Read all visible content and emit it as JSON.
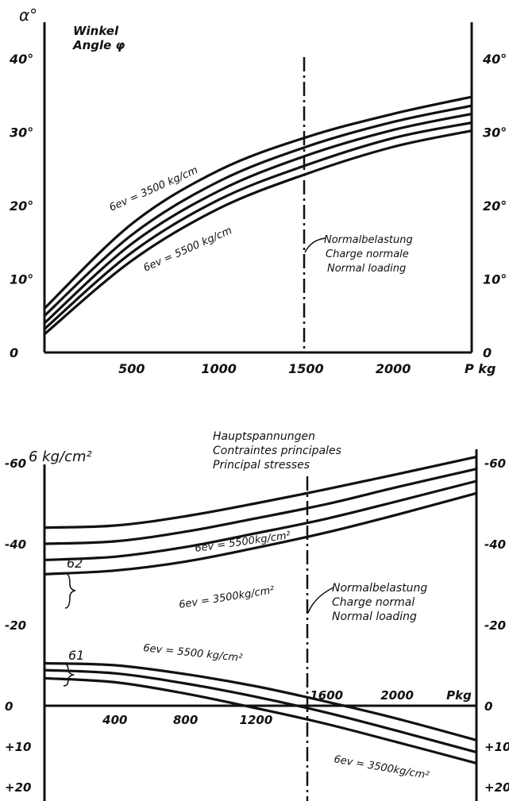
{
  "chart_data": [
    {
      "type": "line",
      "ylabel": "α°",
      "title_lines": [
        "Winkel",
        "Angle  φ"
      ],
      "xlabel": "P kg",
      "x_ticks": [
        "500",
        "1000",
        "1500",
        "2000"
      ],
      "y_ticks": [
        "0",
        "10°",
        "20°",
        "30°",
        "40°"
      ],
      "y_ticks_right": [
        "0",
        "10°",
        "20°",
        "30°",
        "40°"
      ],
      "xlim": [
        0,
        2450
      ],
      "ylim": [
        0,
        40
      ],
      "marker": {
        "x": 1480,
        "lines": [
          "Normalbelastung",
          "Charge normale",
          "Normal loading"
        ]
      },
      "annotations": [
        "6ev = 3500 kg/cm",
        "6ev = 5500 kg/cm"
      ],
      "series": [
        {
          "x": [
            0,
            500,
            1000,
            1500,
            2000,
            2450
          ],
          "y": [
            6.0,
            17.5,
            24.8,
            29.3,
            32.5,
            34.8
          ]
        },
        {
          "x": [
            0,
            500,
            1000,
            1500,
            2000,
            2450
          ],
          "y": [
            5.0,
            16.0,
            23.3,
            28.0,
            31.4,
            33.6
          ]
        },
        {
          "x": [
            0,
            500,
            1000,
            1500,
            2000,
            2450
          ],
          "y": [
            4.0,
            14.8,
            22.0,
            26.8,
            30.3,
            32.5
          ]
        },
        {
          "x": [
            0,
            500,
            1000,
            1500,
            2000,
            2450
          ],
          "y": [
            3.2,
            13.6,
            20.8,
            25.5,
            29.2,
            31.3
          ]
        },
        {
          "x": [
            0,
            500,
            1000,
            1500,
            2000,
            2450
          ],
          "y": [
            2.5,
            12.5,
            19.6,
            24.3,
            28.0,
            30.2
          ]
        }
      ]
    },
    {
      "type": "line",
      "ylabel": "6 kg/cm²",
      "title_lines": [
        "Hauptspannungen",
        "Contraintes principales",
        "Principal stresses"
      ],
      "x_ticks": [
        "400",
        "800",
        "1200",
        "1600",
        "2000",
        "Pkg"
      ],
      "y_ticks": [
        "-60",
        "-40",
        "-20",
        "0",
        "+10",
        "+20"
      ],
      "y_ticks_right": [
        "-60",
        "-40",
        "-20",
        "0",
        "+10",
        "+20"
      ],
      "xlim": [
        0,
        2450
      ],
      "ylim": [
        -72,
        22
      ],
      "marker": {
        "x": 1480,
        "lines": [
          "Normalbelastung",
          "Charge normal",
          "Normal loading"
        ]
      },
      "group_labels": [
        "62",
        "61"
      ],
      "annotations": [
        "6ev = 5500kg/cm²",
        "6ev = 3500kg/cm²",
        "6ev = 5500 kg/cm²",
        "6ev = 3500kg/cm²"
      ],
      "series": [
        {
          "x": [
            0,
            400,
            800,
            1200,
            1600,
            2000,
            2450
          ],
          "y": [
            -44.0,
            -44.5,
            -46.8,
            -50.0,
            -53.5,
            -57.2,
            -61.5
          ]
        },
        {
          "x": [
            0,
            400,
            800,
            1200,
            1600,
            2000,
            2450
          ],
          "y": [
            -40.0,
            -40.6,
            -43.0,
            -46.3,
            -49.8,
            -54.0,
            -58.5
          ]
        },
        {
          "x": [
            0,
            400,
            800,
            1200,
            1600,
            2000,
            2450
          ],
          "y": [
            -36.0,
            -36.8,
            -39.2,
            -42.6,
            -46.2,
            -50.5,
            -55.5
          ]
        },
        {
          "x": [
            0,
            400,
            800,
            1200,
            1600,
            2000,
            2450
          ],
          "y": [
            -32.5,
            -33.4,
            -35.6,
            -39.0,
            -42.8,
            -47.2,
            -52.5
          ]
        },
        {
          "x": [
            0,
            400,
            800,
            1200,
            1600,
            2000,
            2450
          ],
          "y": [
            -10.5,
            -10.0,
            -7.8,
            -4.8,
            -1.0,
            3.2,
            8.5
          ]
        },
        {
          "x": [
            0,
            400,
            800,
            1200,
            1600,
            2000,
            2450
          ],
          "y": [
            -8.8,
            -8.0,
            -5.5,
            -2.2,
            1.7,
            6.2,
            11.5
          ]
        },
        {
          "x": [
            0,
            400,
            800,
            1200,
            1600,
            2000,
            2450
          ],
          "y": [
            -6.8,
            -5.8,
            -3.0,
            0.6,
            4.5,
            9.0,
            14.2
          ]
        }
      ]
    }
  ]
}
